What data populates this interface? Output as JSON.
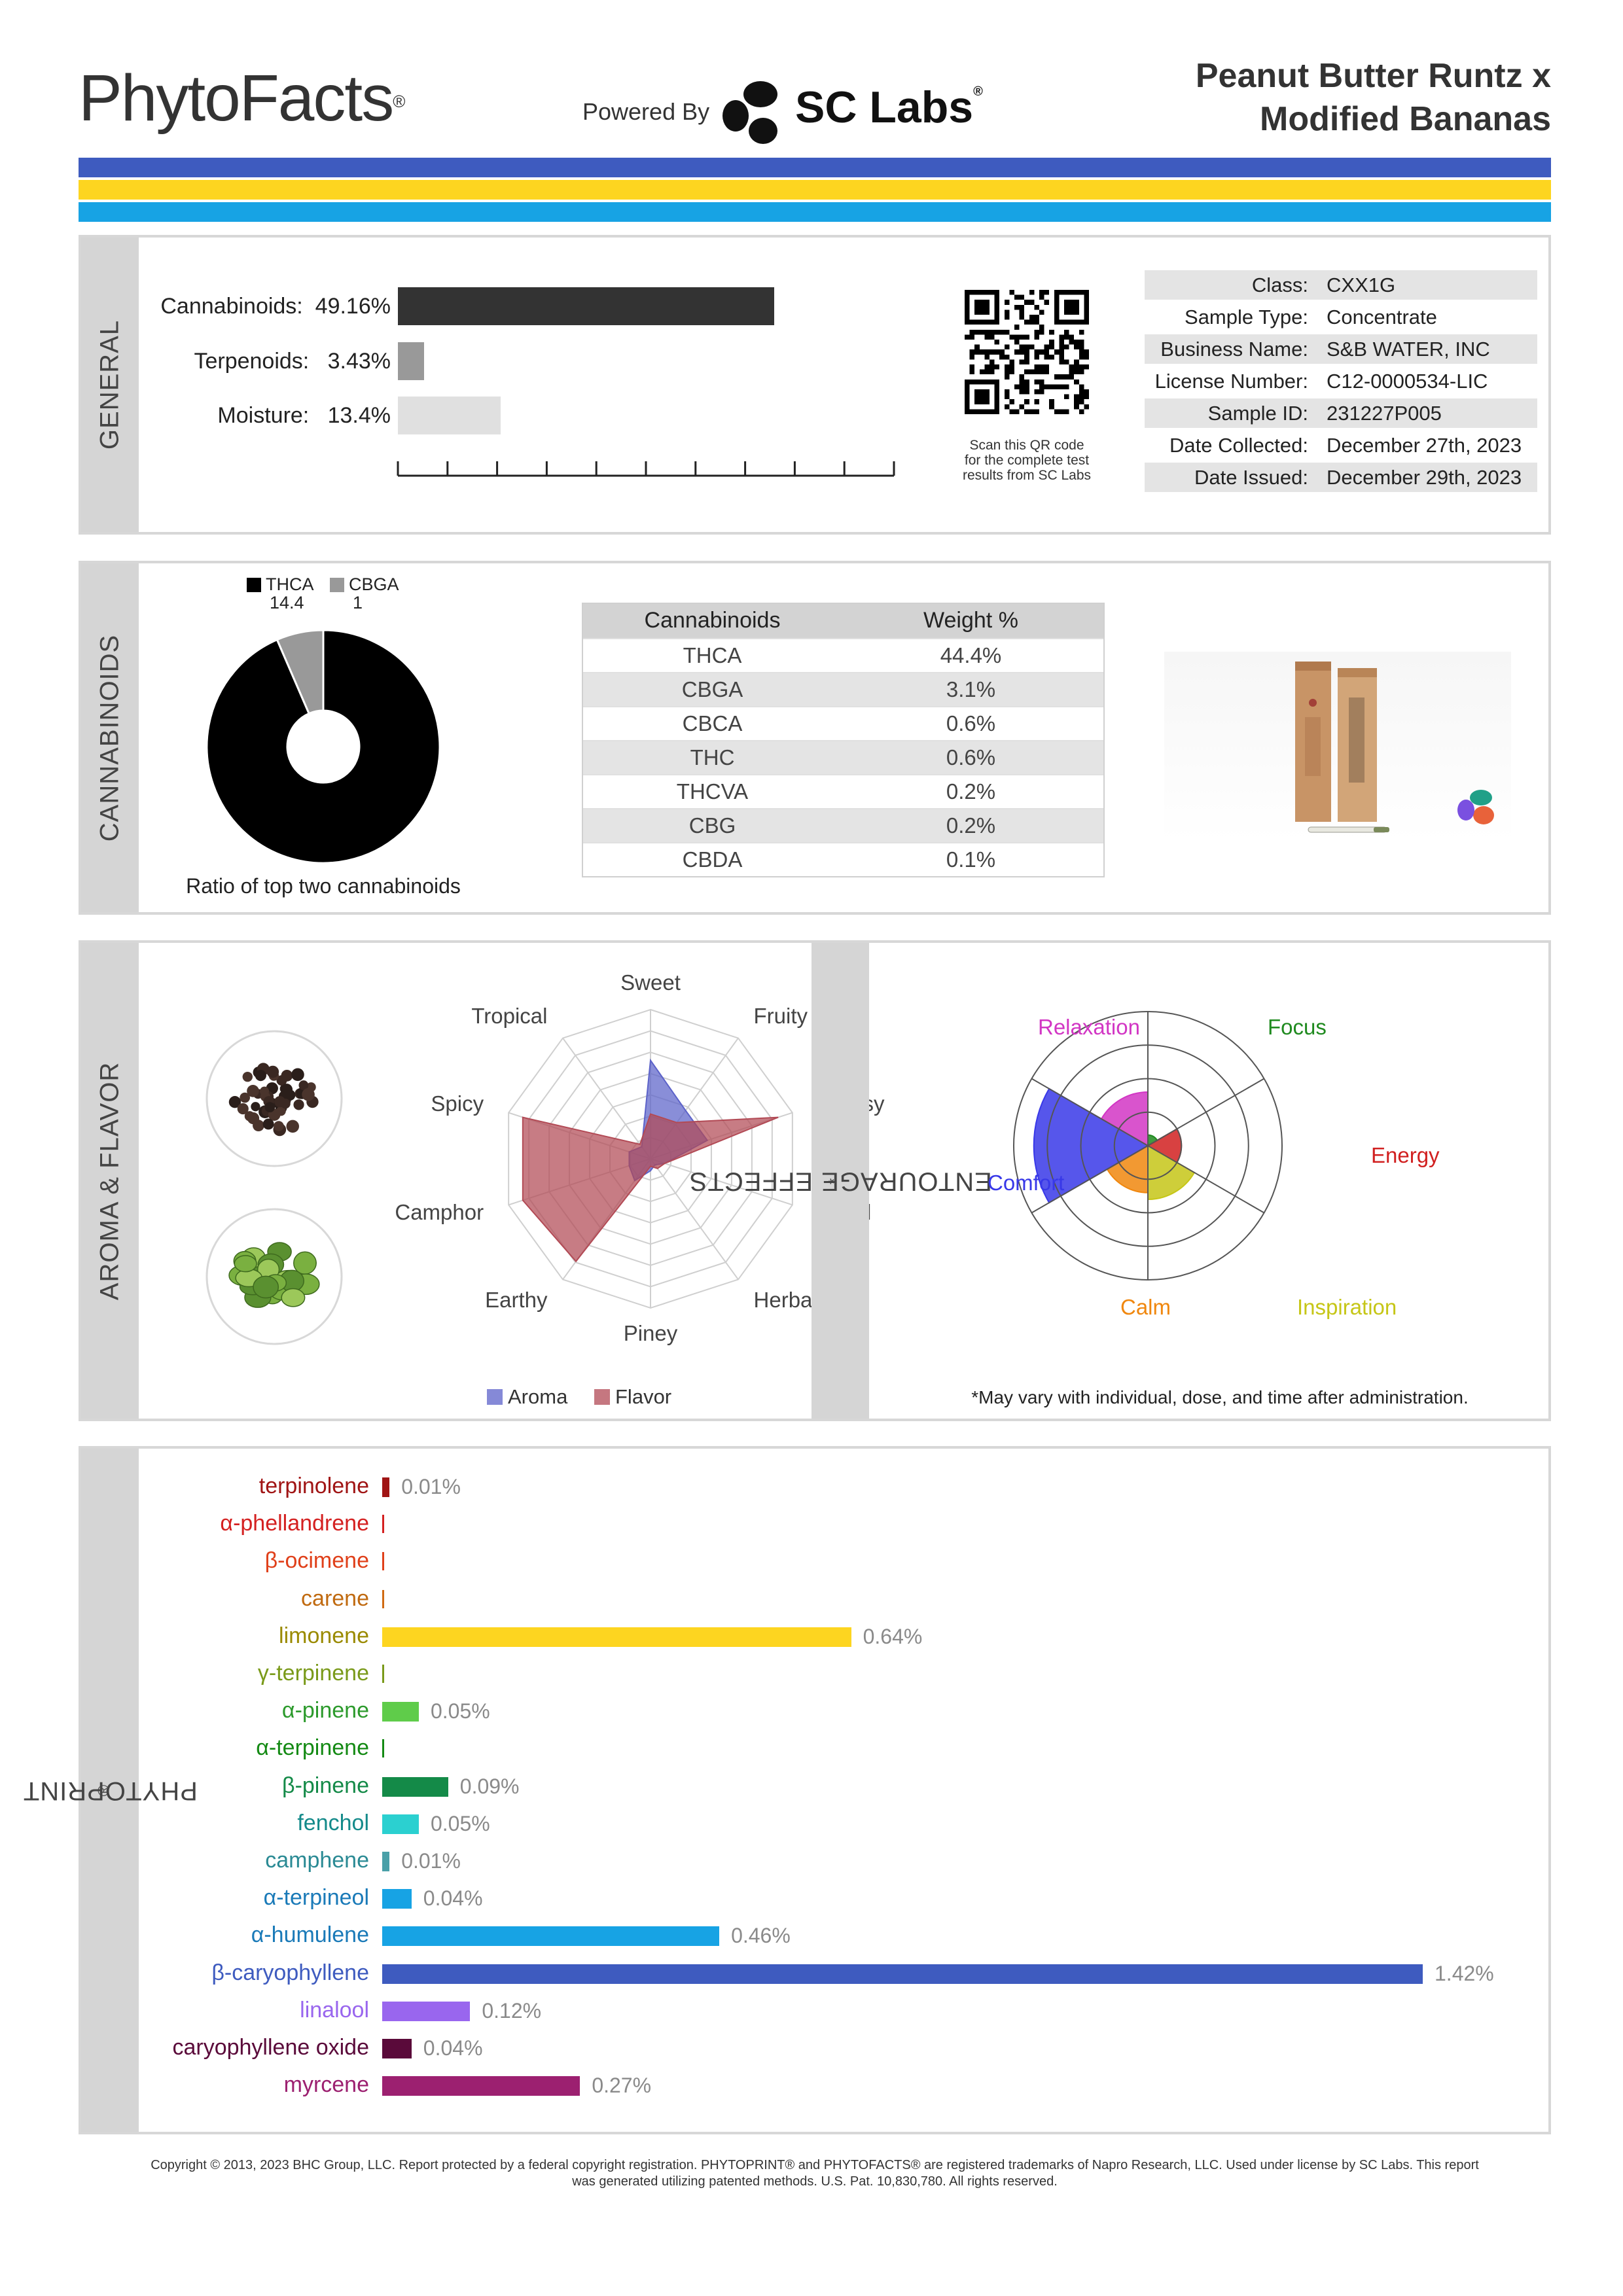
{
  "header": {
    "logo": "PhytoFacts",
    "logo_mark": "®",
    "powered_by": "Powered By",
    "lab_name": "SC Labs",
    "lab_mark": "®",
    "product_title_line1": "Peanut Butter Runtz x",
    "product_title_line2": "Modified Bananas",
    "stripe_colors": [
      "#3e5bbf",
      "#fdd520",
      "#17a3e4"
    ]
  },
  "general": {
    "section_label": "GENERAL",
    "bars": [
      {
        "label": "Cannabinoids:",
        "value": "49.16%",
        "percent": 49.16,
        "color": "#333333"
      },
      {
        "label": "Terpenoids:",
        "value": "3.43%",
        "percent": 3.43,
        "color": "#999999"
      },
      {
        "label": "Moisture:",
        "value": "13.4%",
        "percent": 13.4,
        "color": "#e0e0e0"
      }
    ],
    "qr_caption_lines": [
      "Scan this QR code",
      "for the complete test",
      "results from SC Labs"
    ],
    "metadata": [
      {
        "key": "Class:",
        "value": "CXX1G"
      },
      {
        "key": "Sample Type:",
        "value": "Concentrate"
      },
      {
        "key": "Business Name:",
        "value": "S&B WATER, INC"
      },
      {
        "key": "License Number:",
        "value": "C12-0000534-LIC"
      },
      {
        "key": "Sample ID:",
        "value": "231227P005"
      },
      {
        "key": "Date Collected:",
        "value": "December 27th, 2023"
      },
      {
        "key": "Date Issued:",
        "value": "December 29th, 2023"
      }
    ]
  },
  "cannabinoids": {
    "section_label": "CANNABINOIDS",
    "chart_caption": "Ratio of top two cannabinoids",
    "table_headers": [
      "Cannabinoids",
      "Weight %"
    ],
    "table_rows": [
      [
        "THCA",
        "44.4%"
      ],
      [
        "CBGA",
        "3.1%"
      ],
      [
        "CBCA",
        "0.6%"
      ],
      [
        "THC",
        "0.6%"
      ],
      [
        "THCVA",
        "0.2%"
      ],
      [
        "CBG",
        "0.2%"
      ],
      [
        "CBDA",
        "0.1%"
      ]
    ]
  },
  "aroma": {
    "section_label": "AROMA & FLAVOR",
    "legend": [
      "Aroma",
      "Flavor"
    ],
    "colors": {
      "aroma": "#5c62c9",
      "flavor": "#b24a55"
    }
  },
  "entourage": {
    "section_label": "ENTOURAGE EFFECTS",
    "section_mark": "*",
    "labels": {
      "relaxation": "Relaxation",
      "focus": "Focus",
      "energy": "Energy",
      "inspiration": "Inspiration",
      "calm": "Calm",
      "comfort": "Comfort"
    },
    "colors": {
      "relaxation": "#d236c4",
      "focus": "#1f8a1f",
      "energy": "#d12020",
      "inspiration": "#c6c617",
      "calm": "#f0870e",
      "comfort": "#3838e8"
    },
    "footnote": "*May vary with individual, dose, and time after administration."
  },
  "phytoprint": {
    "section_label": "PHYTOPRINT",
    "section_mark": "®"
  },
  "chart_data": [
    {
      "type": "bar",
      "categories": [
        "Cannabinoids",
        "Terpenoids",
        "Moisture"
      ],
      "values": [
        49.16,
        3.43,
        13.4
      ]
    },
    {
      "type": "pie",
      "categories": [
        "THCA",
        "CBGA"
      ],
      "values": [
        14.4,
        1.0
      ],
      "colors": [
        "#000000",
        "#999999"
      ],
      "legend_position": "top"
    },
    {
      "type": "radar",
      "categories": [
        "Sweet",
        "Fruity",
        "Citrusy",
        "Floral",
        "Herbal",
        "Piney",
        "Earthy",
        "Camphor",
        "Spicy",
        "Tropical"
      ],
      "series": [
        {
          "name": "Aroma",
          "values": [
            0.66,
            0.4,
            0.4,
            0.1,
            0.05,
            0.08,
            0.18,
            0.15,
            0.15,
            0.1
          ]
        },
        {
          "name": "Flavor",
          "values": [
            0.3,
            0.3,
            0.9,
            0.1,
            0.08,
            0.05,
            0.85,
            0.9,
            0.9,
            0.12
          ]
        }
      ],
      "legend_position": "bottom"
    },
    {
      "type": "polar_area",
      "categories": [
        "Focus",
        "Energy",
        "Inspiration",
        "Calm",
        "Comfort",
        "Relaxation"
      ],
      "values": [
        0.08,
        0.25,
        0.4,
        0.35,
        0.85,
        0.4
      ],
      "range": [
        0,
        1
      ]
    },
    {
      "type": "bar",
      "orientation": "horizontal",
      "categories": [
        "terpinolene",
        "α-phellandrene",
        "β-ocimene",
        "carene",
        "limonene",
        "γ-terpinene",
        "α-pinene",
        "α-terpinene",
        "β-pinene",
        "fenchol",
        "camphene",
        "α-terpineol",
        "α-humulene",
        "β-caryophyllene",
        "linalool",
        "caryophyllene oxide",
        "myrcene"
      ],
      "values": [
        0.01,
        0,
        0,
        0,
        0.64,
        0,
        0.05,
        0,
        0.09,
        0.05,
        0.01,
        0.04,
        0.46,
        1.42,
        0.12,
        0.04,
        0.27
      ],
      "labels": [
        "0.01%",
        "",
        "",
        "",
        "0.64%",
        "",
        "0.05%",
        "",
        "0.09%",
        "0.05%",
        "0.01%",
        "0.04%",
        "0.46%",
        "1.42%",
        "0.12%",
        "0.04%",
        "0.27%"
      ],
      "colors": [
        "#a01414",
        "#d42020",
        "#e0401a",
        "#d06a12",
        "#fdd520",
        "#7a9a1a",
        "#5fcc4a",
        "#148a14",
        "#148a48",
        "#2bd0d0",
        "#4aa0a8",
        "#17a3e4",
        "#17a3e4",
        "#3e5bbf",
        "#9966ee",
        "#5a0a3a",
        "#9c2070"
      ],
      "label_colors": [
        "#a01414",
        "#d42020",
        "#e0401a",
        "#c06a10",
        "#9a8a00",
        "#7a9a1a",
        "#2c9a2c",
        "#148a14",
        "#148a48",
        "#148a8a",
        "#2a8a94",
        "#1a7ab8",
        "#1a7ab8",
        "#3e5bbf",
        "#9966ee",
        "#5a0a3a",
        "#9c2070"
      ],
      "xlim": [
        0,
        1.42
      ]
    }
  ],
  "footer": {
    "line1": "Copyright © 2013, 2023 BHC Group, LLC. Report protected by a federal copyright registration. PHYTOPRINT® and PHYTOFACTS® are registered trademarks of Napro Research, LLC. Used under license by SC Labs. This report",
    "line2": "was generated utilizing patented methods. U.S. Pat. 10,830,780. All rights reserved."
  }
}
